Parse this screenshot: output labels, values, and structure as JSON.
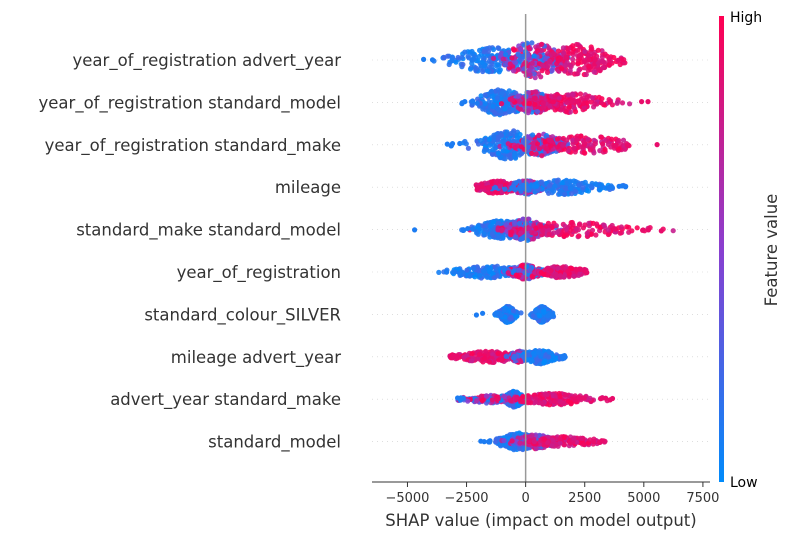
{
  "chart_data": {
    "type": "scatter",
    "subtype": "shap-beeswarm-summary",
    "xlabel": "SHAP value (impact on model output)",
    "xlim": [
      -6500,
      7800
    ],
    "xticks": [
      -5000,
      -2500,
      0,
      2500,
      5000,
      7500
    ],
    "xtick_labels": [
      "−5000",
      "−2500",
      "0",
      "2500",
      "5000",
      "7500"
    ],
    "colorbar": {
      "label": "Feature value",
      "high_label": "High",
      "low_label": "Low",
      "low_color": "#008bfb",
      "high_color": "#ff0052",
      "mid_color": "#8a3fd0"
    },
    "zero_line_color": "#999999",
    "grid": false,
    "features": [
      {
        "name": "year_of_registration advert_year",
        "min": -6000,
        "max": 4200,
        "core": [
          -1800,
          2500
        ],
        "amp": 1.0,
        "clusters": [
          {
            "center": -1500,
            "spread": 900,
            "weight": 1.0,
            "color": "low"
          },
          {
            "center": 300,
            "spread": 700,
            "weight": 1.4,
            "color": "mixed"
          },
          {
            "center": 2300,
            "spread": 900,
            "weight": 1.2,
            "color": "high"
          }
        ]
      },
      {
        "name": "year_of_registration standard_model",
        "min": -2700,
        "max": 7000,
        "core": [
          -2000,
          2000
        ],
        "amp": 0.85,
        "clusters": [
          {
            "center": -1000,
            "spread": 600,
            "weight": 1.2,
            "color": "low"
          },
          {
            "center": 300,
            "spread": 500,
            "weight": 1.0,
            "color": "mixed"
          },
          {
            "center": 1800,
            "spread": 900,
            "weight": 0.9,
            "color": "high"
          }
        ]
      },
      {
        "name": "year_of_registration standard_make",
        "min": -3500,
        "max": 7000,
        "core": [
          -2500,
          3000
        ],
        "amp": 0.85,
        "clusters": [
          {
            "center": -700,
            "spread": 700,
            "weight": 1.3,
            "color": "low"
          },
          {
            "center": 600,
            "spread": 600,
            "weight": 1.0,
            "color": "mixed"
          },
          {
            "center": 2500,
            "spread": 1200,
            "weight": 0.8,
            "color": "high"
          }
        ]
      },
      {
        "name": "mileage",
        "min": -2100,
        "max": 4400,
        "core": [
          -1500,
          3500
        ],
        "amp": 0.55,
        "clusters": [
          {
            "center": -1200,
            "spread": 500,
            "weight": 0.9,
            "color": "high"
          },
          {
            "center": 0,
            "spread": 400,
            "weight": 1.0,
            "color": "mixed"
          },
          {
            "center": 1500,
            "spread": 1000,
            "weight": 1.0,
            "color": "low"
          }
        ]
      },
      {
        "name": "standard_make standard_model",
        "min": -5000,
        "max": 6300,
        "core": [
          -2200,
          3500
        ],
        "amp": 0.7,
        "clusters": [
          {
            "center": -1000,
            "spread": 700,
            "weight": 1.0,
            "color": "low"
          },
          {
            "center": 0,
            "spread": 500,
            "weight": 1.2,
            "color": "mixed"
          },
          {
            "center": 2000,
            "spread": 1500,
            "weight": 0.8,
            "color": "high"
          }
        ]
      },
      {
        "name": "year_of_registration",
        "min": -3700,
        "max": 2600,
        "core": [
          -2500,
          2500
        ],
        "amp": 0.55,
        "clusters": [
          {
            "center": -1500,
            "spread": 900,
            "weight": 0.9,
            "color": "low"
          },
          {
            "center": 0,
            "spread": 400,
            "weight": 1.0,
            "color": "mixed"
          },
          {
            "center": 1500,
            "spread": 600,
            "weight": 0.8,
            "color": "high"
          }
        ]
      },
      {
        "name": "standard_colour_SILVER",
        "min": -2800,
        "max": 1200,
        "core": [
          -800,
          900
        ],
        "amp": 0.55,
        "clusters": [
          {
            "center": -750,
            "spread": 180,
            "weight": 1.2,
            "color": "low"
          },
          {
            "center": 700,
            "spread": 200,
            "weight": 1.1,
            "color": "low"
          }
        ]
      },
      {
        "name": "mileage advert_year",
        "min": -3200,
        "max": 1700,
        "core": [
          -2800,
          1500
        ],
        "amp": 0.55,
        "clusters": [
          {
            "center": -1500,
            "spread": 800,
            "weight": 0.8,
            "color": "high"
          },
          {
            "center": -200,
            "spread": 300,
            "weight": 0.8,
            "color": "mixed"
          },
          {
            "center": 600,
            "spread": 400,
            "weight": 1.0,
            "color": "low"
          }
        ]
      },
      {
        "name": "advert_year standard_make",
        "min": -2900,
        "max": 3700,
        "core": [
          -2500,
          3000
        ],
        "amp": 0.5,
        "clusters": [
          {
            "center": -500,
            "spread": 250,
            "weight": 1.2,
            "color": "low"
          },
          {
            "center": -1500,
            "spread": 700,
            "weight": 0.6,
            "color": "mixed"
          },
          {
            "center": 1200,
            "spread": 900,
            "weight": 0.9,
            "color": "high"
          }
        ]
      },
      {
        "name": "standard_model",
        "min": -1900,
        "max": 3400,
        "core": [
          -1500,
          2800
        ],
        "amp": 0.55,
        "clusters": [
          {
            "center": -300,
            "spread": 500,
            "weight": 1.2,
            "color": "low"
          },
          {
            "center": 400,
            "spread": 500,
            "weight": 1.0,
            "color": "mixed"
          },
          {
            "center": 1600,
            "spread": 900,
            "weight": 0.7,
            "color": "high"
          }
        ]
      }
    ]
  }
}
